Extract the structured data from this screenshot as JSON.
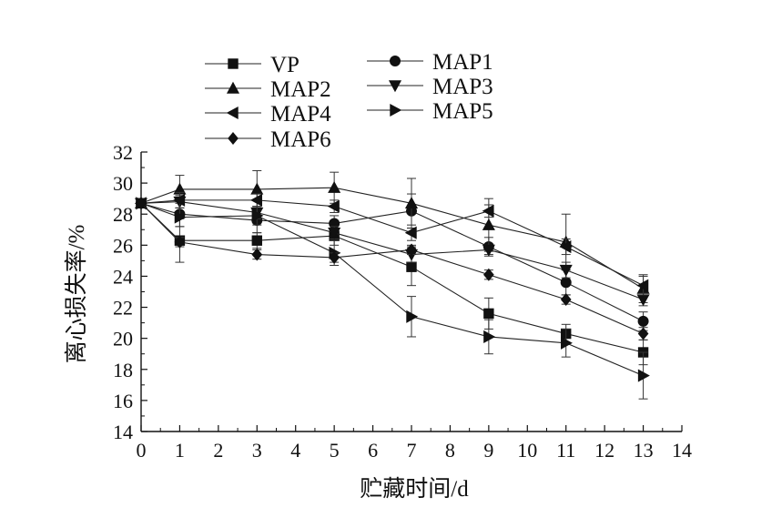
{
  "chart_data": {
    "type": "line",
    "title": "",
    "xlabel": "贮藏时间/d",
    "ylabel": "离心损失率/%",
    "xlim": [
      0,
      14
    ],
    "ylim": [
      14,
      32
    ],
    "xticks": [
      0,
      1,
      2,
      3,
      4,
      5,
      6,
      7,
      8,
      9,
      10,
      11,
      12,
      13,
      14
    ],
    "yticks": [
      14,
      16,
      18,
      20,
      22,
      24,
      26,
      28,
      30,
      32
    ],
    "grid": false,
    "legend_position": "top-left",
    "x": [
      0,
      1,
      3,
      5,
      7,
      9,
      11,
      13
    ],
    "series": [
      {
        "name": "VP",
        "marker": "square",
        "values": [
          28.7,
          26.3,
          26.3,
          26.6,
          24.6,
          21.6,
          20.3,
          19.1
        ],
        "errors": [
          0.2,
          1.4,
          0.5,
          0.6,
          1.2,
          1.0,
          0.6,
          0.8
        ]
      },
      {
        "name": "MAP1",
        "marker": "circle",
        "values": [
          28.7,
          28.0,
          27.6,
          27.4,
          28.2,
          25.9,
          23.6,
          21.1
        ],
        "errors": [
          0.2,
          0.8,
          0.8,
          0.5,
          1.1,
          0.6,
          0.8,
          0.6
        ]
      },
      {
        "name": "MAP2",
        "marker": "triangle-up",
        "values": [
          28.7,
          29.6,
          29.6,
          29.7,
          28.7,
          27.3,
          26.2,
          23.2
        ],
        "errors": [
          0.2,
          0.9,
          1.2,
          1.0,
          1.6,
          1.7,
          1.8,
          0.9
        ]
      },
      {
        "name": "MAP3",
        "marker": "triangle-down",
        "values": [
          28.7,
          28.8,
          28.1,
          26.8,
          25.4,
          25.7,
          24.4,
          22.5
        ],
        "errors": [
          0.2,
          0.4,
          0.4,
          0.4,
          0.5,
          0.3,
          0.5,
          0.4
        ]
      },
      {
        "name": "MAP4",
        "marker": "triangle-left",
        "values": [
          28.7,
          28.9,
          28.9,
          28.5,
          26.8,
          28.2,
          25.9,
          23.4
        ],
        "errors": [
          0.2,
          0.5,
          0.4,
          0.4,
          0.5,
          0.4,
          0.5,
          0.6
        ]
      },
      {
        "name": "MAP5",
        "marker": "triangle-right",
        "values": [
          28.7,
          27.8,
          27.9,
          25.5,
          21.4,
          20.1,
          19.7,
          17.6
        ],
        "errors": [
          0.2,
          0.6,
          0.6,
          0.8,
          1.3,
          1.1,
          0.9,
          1.5
        ]
      },
      {
        "name": "MAP6",
        "marker": "diamond",
        "values": [
          28.7,
          26.2,
          25.4,
          25.2,
          25.7,
          24.1,
          22.5,
          20.3
        ],
        "errors": [
          0.2,
          0.3,
          0.3,
          0.3,
          0.3,
          0.3,
          0.3,
          0.4
        ]
      }
    ]
  }
}
